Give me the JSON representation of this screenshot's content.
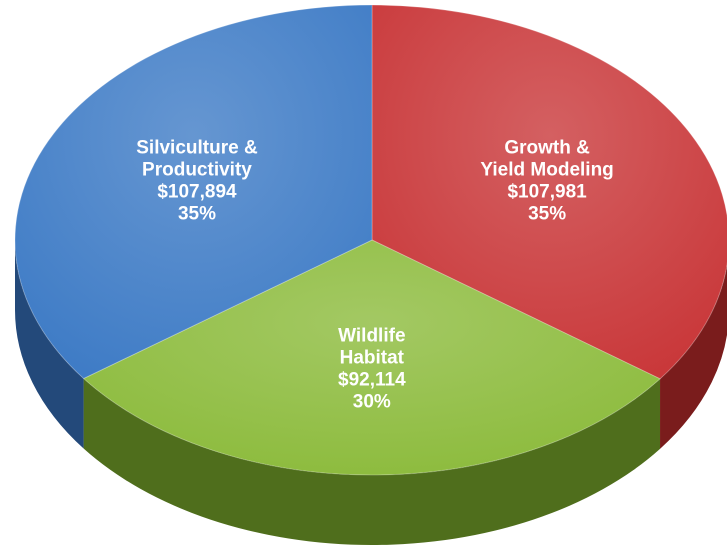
{
  "chart_data": {
    "type": "pie",
    "categories": [
      [
        "Growth &",
        "Yield Modeling"
      ],
      [
        "Wildlife",
        "Habitat"
      ],
      [
        "Silviculture &",
        "Productivity"
      ]
    ],
    "values": [
      107981,
      92114,
      107894
    ],
    "value_labels": [
      "$107,981",
      "$92,114",
      "$107,894"
    ],
    "percents": [
      35,
      30,
      35
    ],
    "percent_labels": [
      "35%",
      "30%",
      "35%"
    ],
    "colors": [
      "#c9383a",
      "#8cbb3c",
      "#3f7cc6"
    ],
    "side_colors": [
      "#7a1c1c",
      "#4f6e1c",
      "#23497a"
    ]
  }
}
